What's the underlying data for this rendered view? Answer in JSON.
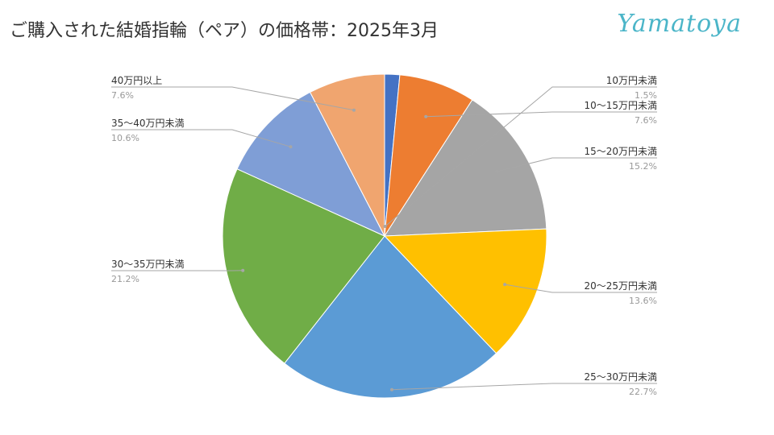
{
  "title": "ご購入された結婚指輪（ペア）の価格帯：2025年3月",
  "brand": "Yamatoya",
  "chart_data": {
    "type": "pie",
    "title": "ご購入された結婚指輪（ペア）の価格帯：2025年3月",
    "value_unit": "%",
    "start_angle_deg": 0,
    "direction": "clockwise",
    "legend": "none",
    "slices": [
      {
        "label": "10万円未満",
        "value": 1.5,
        "display": "1.5%",
        "color": "#4472c4"
      },
      {
        "label": "10〜15万円未満",
        "value": 7.6,
        "display": "7.6%",
        "color": "#ed7d31"
      },
      {
        "label": "15〜20万円未満",
        "value": 15.2,
        "display": "15.2%",
        "color": "#a5a5a5"
      },
      {
        "label": "20〜25万円未満",
        "value": 13.6,
        "display": "13.6%",
        "color": "#ffc000"
      },
      {
        "label": "25〜30万円未満",
        "value": 22.7,
        "display": "22.7%",
        "color": "#5b9bd5"
      },
      {
        "label": "30〜35万円未満",
        "value": 21.2,
        "display": "21.2%",
        "color": "#70ad47"
      },
      {
        "label": "35〜40万円未満",
        "value": 10.6,
        "display": "10.6%",
        "color": "#7f9ed6"
      },
      {
        "label": "40万円以上",
        "value": 7.6,
        "display": "7.6%",
        "color": "#f0a56f"
      }
    ]
  }
}
